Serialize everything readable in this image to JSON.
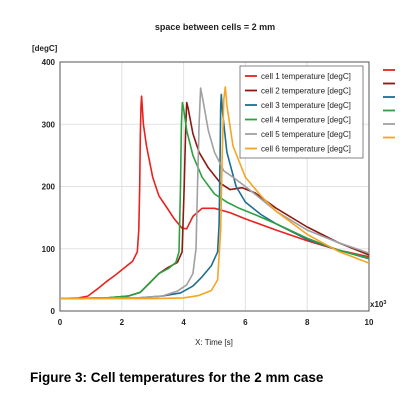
{
  "caption": "Figure 3: Cell temperatures for the 2 mm case",
  "chart_data": {
    "type": "line",
    "title": "space between cells = 2 mm",
    "ylabel": "[degC]",
    "xlabel": "X: Time [s]",
    "x_multiplier_label": "x10",
    "x_multiplier_exp": "3",
    "xlim": [
      0,
      10
    ],
    "ylim": [
      0,
      400
    ],
    "xticks": [
      0,
      2,
      4,
      6,
      8,
      10
    ],
    "yticks": [
      0,
      100,
      200,
      300,
      400
    ],
    "grid": true,
    "legend_position": "top-right",
    "series": [
      {
        "name": "cell 1 temperature [degC]",
        "color": "#e8231f",
        "points": [
          [
            0,
            20
          ],
          [
            0.6,
            21
          ],
          [
            0.9,
            24
          ],
          [
            1.2,
            35
          ],
          [
            1.5,
            47
          ],
          [
            1.8,
            58
          ],
          [
            2.1,
            70
          ],
          [
            2.35,
            80
          ],
          [
            2.5,
            95
          ],
          [
            2.55,
            130
          ],
          [
            2.58,
            200
          ],
          [
            2.6,
            280
          ],
          [
            2.62,
            330
          ],
          [
            2.64,
            345
          ],
          [
            2.66,
            330
          ],
          [
            2.7,
            300
          ],
          [
            2.8,
            265
          ],
          [
            3.0,
            215
          ],
          [
            3.2,
            185
          ],
          [
            3.5,
            163
          ],
          [
            3.7,
            148
          ],
          [
            3.95,
            133
          ],
          [
            4.1,
            132
          ],
          [
            4.3,
            152
          ],
          [
            4.6,
            165
          ],
          [
            5.0,
            165
          ],
          [
            5.5,
            158
          ],
          [
            6.0,
            148
          ],
          [
            7.0,
            130
          ],
          [
            8.0,
            113
          ],
          [
            9.0,
            98
          ],
          [
            10,
            87
          ]
        ]
      },
      {
        "name": "cell 2 temperature [degC]",
        "color": "#8b1a12",
        "points": [
          [
            0,
            20
          ],
          [
            1.5,
            21
          ],
          [
            2.2,
            24
          ],
          [
            2.6,
            30
          ],
          [
            2.9,
            45
          ],
          [
            3.2,
            60
          ],
          [
            3.5,
            70
          ],
          [
            3.8,
            78
          ],
          [
            3.95,
            95
          ],
          [
            4.02,
            200
          ],
          [
            4.07,
            300
          ],
          [
            4.1,
            335
          ],
          [
            4.15,
            325
          ],
          [
            4.3,
            285
          ],
          [
            4.5,
            255
          ],
          [
            4.8,
            230
          ],
          [
            5.2,
            205
          ],
          [
            5.5,
            195
          ],
          [
            5.9,
            198
          ],
          [
            6.3,
            190
          ],
          [
            7.0,
            165
          ],
          [
            8.0,
            135
          ],
          [
            9.0,
            110
          ],
          [
            10,
            90
          ]
        ]
      },
      {
        "name": "cell 3 temperature [degC]",
        "color": "#1e6e92",
        "points": [
          [
            0,
            20
          ],
          [
            2.5,
            21
          ],
          [
            3.3,
            24
          ],
          [
            3.9,
            29
          ],
          [
            4.3,
            40
          ],
          [
            4.6,
            55
          ],
          [
            4.9,
            73
          ],
          [
            5.1,
            95
          ],
          [
            5.15,
            140
          ],
          [
            5.18,
            250
          ],
          [
            5.2,
            330
          ],
          [
            5.22,
            348
          ],
          [
            5.26,
            320
          ],
          [
            5.4,
            255
          ],
          [
            5.7,
            200
          ],
          [
            6.0,
            175
          ],
          [
            6.5,
            155
          ],
          [
            7.0,
            140
          ],
          [
            8.0,
            115
          ],
          [
            9.0,
            98
          ],
          [
            10,
            84
          ]
        ]
      },
      {
        "name": "cell 4 temperature [degC]",
        "color": "#2ea042",
        "points": [
          [
            0,
            20
          ],
          [
            1.5,
            21
          ],
          [
            2.2,
            24
          ],
          [
            2.6,
            30
          ],
          [
            2.9,
            45
          ],
          [
            3.2,
            60
          ],
          [
            3.5,
            68
          ],
          [
            3.75,
            78
          ],
          [
            3.85,
            95
          ],
          [
            3.9,
            200
          ],
          [
            3.93,
            300
          ],
          [
            3.96,
            335
          ],
          [
            4.0,
            325
          ],
          [
            4.1,
            290
          ],
          [
            4.3,
            250
          ],
          [
            4.6,
            215
          ],
          [
            5.0,
            188
          ],
          [
            5.4,
            175
          ],
          [
            5.8,
            165
          ],
          [
            6.3,
            155
          ],
          [
            7.0,
            140
          ],
          [
            8.0,
            117
          ],
          [
            9.0,
            98
          ],
          [
            10,
            85
          ]
        ]
      },
      {
        "name": "cell 5 temperature [degC]",
        "color": "#a0a0a0",
        "points": [
          [
            0,
            20
          ],
          [
            2.5,
            21
          ],
          [
            3.3,
            24
          ],
          [
            3.8,
            32
          ],
          [
            4.1,
            42
          ],
          [
            4.3,
            60
          ],
          [
            4.4,
            100
          ],
          [
            4.45,
            200
          ],
          [
            4.5,
            300
          ],
          [
            4.55,
            358
          ],
          [
            4.62,
            340
          ],
          [
            4.8,
            290
          ],
          [
            5.0,
            255
          ],
          [
            5.3,
            225
          ],
          [
            5.6,
            215
          ],
          [
            6.0,
            200
          ],
          [
            6.5,
            180
          ],
          [
            7.0,
            160
          ],
          [
            8.0,
            130
          ],
          [
            9.0,
            110
          ],
          [
            10,
            93
          ]
        ]
      },
      {
        "name": "cell 6 temperature [degC]",
        "color": "#f5a524",
        "points": [
          [
            0,
            20
          ],
          [
            3.0,
            20
          ],
          [
            4.0,
            21
          ],
          [
            4.5,
            25
          ],
          [
            4.9,
            33
          ],
          [
            5.1,
            50
          ],
          [
            5.2,
            130
          ],
          [
            5.25,
            250
          ],
          [
            5.3,
            340
          ],
          [
            5.35,
            360
          ],
          [
            5.4,
            330
          ],
          [
            5.6,
            265
          ],
          [
            6.0,
            215
          ],
          [
            6.5,
            185
          ],
          [
            7.0,
            160
          ],
          [
            8.0,
            123
          ],
          [
            9.0,
            96
          ],
          [
            10,
            77
          ]
        ]
      }
    ],
    "right_legend_colors": [
      "#e8231f",
      "#8b1a12",
      "#1e6e92",
      "#2ea042",
      "#a0a0a0",
      "#f5a524"
    ]
  }
}
